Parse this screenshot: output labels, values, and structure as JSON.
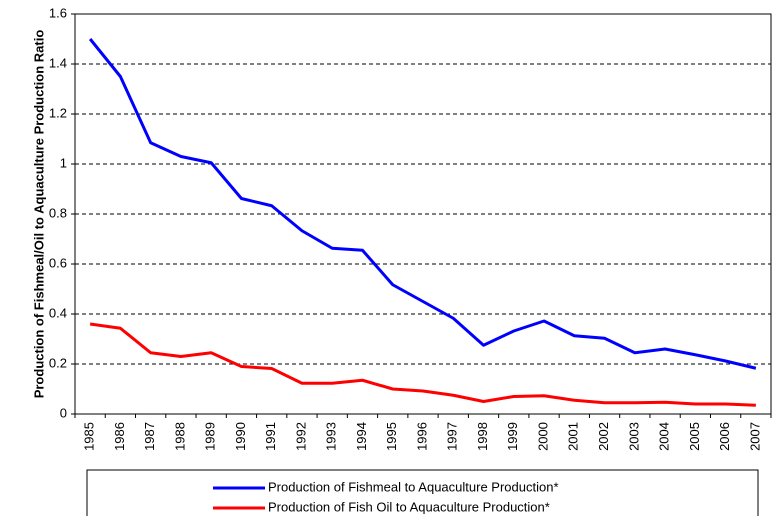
{
  "chart_data": {
    "type": "line",
    "y_label": "Production of Fishmeal/Oil to Aquaculture Production Ratio",
    "categories": [
      "1985",
      "1986",
      "1987",
      "1988",
      "1989",
      "1990",
      "1991",
      "1992",
      "1993",
      "1994",
      "1995",
      "1996",
      "1997",
      "1998",
      "1999",
      "2000",
      "2001",
      "2002",
      "2003",
      "2004",
      "2005",
      "2006",
      "2007"
    ],
    "series": [
      {
        "name": "Production of Fishmeal to Aquaculture Production*",
        "color": "#0000ff",
        "values": [
          1.5,
          1.35,
          1.085,
          1.03,
          1.005,
          0.862,
          0.833,
          0.733,
          0.663,
          0.655,
          0.517,
          0.45,
          0.383,
          0.275,
          0.332,
          0.372,
          0.313,
          0.303,
          0.245,
          0.26,
          0.237,
          0.212,
          0.183
        ]
      },
      {
        "name": "Production of Fish Oil to Aquaculture Production*",
        "color": "#ff0000",
        "values": [
          0.36,
          0.343,
          0.245,
          0.23,
          0.245,
          0.19,
          0.182,
          0.123,
          0.123,
          0.135,
          0.1,
          0.092,
          0.075,
          0.05,
          0.07,
          0.073,
          0.055,
          0.045,
          0.045,
          0.047,
          0.04,
          0.04,
          0.035
        ]
      }
    ],
    "ylim": [
      0,
      1.6
    ],
    "yticks": [
      0,
      0.2,
      0.4,
      0.6,
      0.8,
      1,
      1.2,
      1.4,
      1.6
    ],
    "grid": true
  }
}
